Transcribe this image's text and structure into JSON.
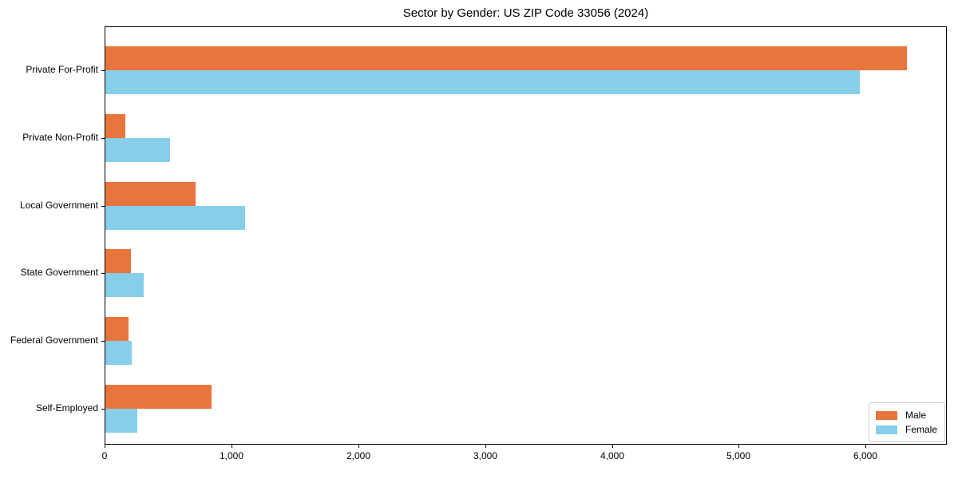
{
  "chart_data": {
    "type": "bar",
    "orientation": "horizontal",
    "title": "Sector by Gender: US ZIP Code 33056 (2024)",
    "categories": [
      "Private For-Profit",
      "Private Non-Profit",
      "Local Government",
      "State Government",
      "Federal Government",
      "Self-Employed"
    ],
    "series": [
      {
        "name": "Male",
        "color": "#E8763C",
        "values": [
          6320,
          160,
          710,
          200,
          180,
          840
        ]
      },
      {
        "name": "Female",
        "color": "#87CEEB",
        "values": [
          5950,
          510,
          1100,
          300,
          210,
          250
        ]
      }
    ],
    "xlabel": "",
    "ylabel": "",
    "xlim": [
      0,
      6640
    ],
    "xticks": [
      0,
      1000,
      2000,
      3000,
      4000,
      5000,
      6000
    ],
    "xtick_labels": [
      "0",
      "1,000",
      "2,000",
      "3,000",
      "4,000",
      "5,000",
      "6,000"
    ],
    "grid": false,
    "legend": {
      "position": "lower right",
      "entries": [
        "Male",
        "Female"
      ]
    },
    "colors": {
      "spine": "#000000",
      "background": "#ffffff",
      "legend_border": "#cccccc"
    }
  }
}
